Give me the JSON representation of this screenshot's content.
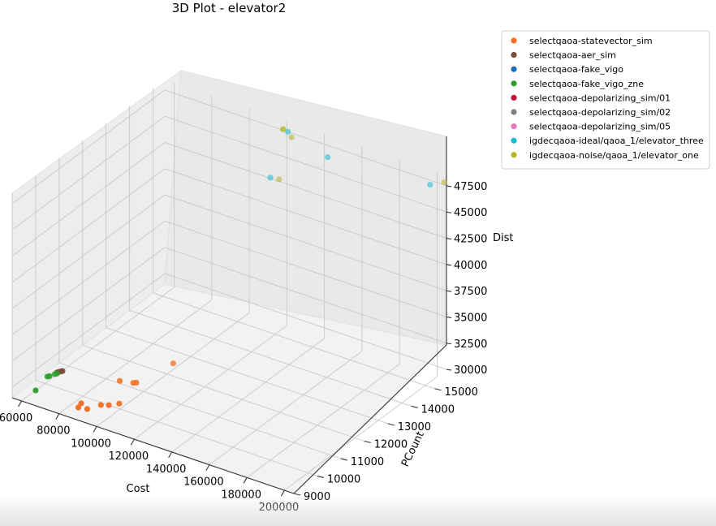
{
  "chart_data": {
    "type": "scatter",
    "title": "3D Plot - elevator2",
    "xlabel": "Cost",
    "ylabel": "PCount",
    "zlabel": "Dist",
    "xlim": [
      55000,
      205000
    ],
    "ylim": [
      9000,
      15500
    ],
    "zlim": [
      29000,
      48500
    ],
    "x_ticks": [
      "60000",
      "80000",
      "100000",
      "120000",
      "140000",
      "160000",
      "180000",
      "200000"
    ],
    "y_ticks": [
      "9000",
      "10000",
      "11000",
      "12000",
      "13000",
      "14000",
      "15000"
    ],
    "z_ticks": [
      "30000",
      "32500",
      "35000",
      "37500",
      "40000",
      "42500",
      "45000",
      "47500"
    ],
    "x_tick_values": [
      60000,
      80000,
      100000,
      120000,
      140000,
      160000,
      180000,
      200000
    ],
    "y_tick_values": [
      9000,
      10000,
      11000,
      12000,
      13000,
      14000,
      15000
    ],
    "z_tick_values": [
      30000,
      32500,
      35000,
      37500,
      40000,
      42500,
      45000,
      47500
    ],
    "grid": true,
    "legend_position": "outside-right",
    "series": [
      {
        "name": "selectqaoa-statevector_sim",
        "color": "#f36d21",
        "points": [
          [
            84000,
            9500,
            29000
          ],
          [
            88000,
            9560,
            29000
          ],
          [
            83000,
            9700,
            29000
          ],
          [
            91000,
            9900,
            29000
          ],
          [
            94000,
            10000,
            29000
          ],
          [
            97000,
            10200,
            29000
          ],
          [
            86000,
            11100,
            29000
          ],
          [
            92000,
            11200,
            29000
          ],
          [
            93000,
            11250,
            29000
          ],
          [
            97000,
            12500,
            29000
          ]
        ]
      },
      {
        "name": "selectqaoa-aer_sim",
        "color": "#7a4a3a",
        "points": [
          [
            59000,
            10600,
            29000
          ],
          [
            59500,
            10650,
            29000
          ],
          [
            60000,
            10700,
            29000
          ],
          [
            60300,
            10720,
            29000
          ]
        ]
      },
      {
        "name": "selectqaoa-fake_vigo",
        "color": "#1f6db5",
        "points": []
      },
      {
        "name": "selectqaoa-fake_vigo_zne",
        "color": "#2ca02c",
        "points": [
          [
            60000,
            9600,
            29000
          ],
          [
            57500,
            10300,
            29000
          ],
          [
            58000,
            10350,
            29000
          ],
          [
            59000,
            10500,
            29000
          ],
          [
            59500,
            10550,
            29000
          ]
        ]
      },
      {
        "name": "selectqaoa-depolarizing_sim/01",
        "color": "#c80f3c",
        "points": []
      },
      {
        "name": "selectqaoa-depolarizing_sim/02",
        "color": "#7f7f7f",
        "points": []
      },
      {
        "name": "selectqaoa-depolarizing_sim/05",
        "color": "#e377c2",
        "points": []
      },
      {
        "name": "igdecqaoa-ideal/qaoa_1/elevator_three",
        "color": "#17becf",
        "points": [
          [
            148000,
            15000,
            47600
          ],
          [
            115000,
            15200,
            43300
          ],
          [
            123000,
            15300,
            48000
          ],
          [
            200000,
            15200,
            47800
          ]
        ]
      },
      {
        "name": "igdecqaoa-noise/qaoa_1/elevator_one",
        "color": "#b5b52a",
        "points": [
          [
            121000,
            15250,
            48200
          ],
          [
            120800,
            15280,
            48150
          ],
          [
            125000,
            15300,
            47600
          ],
          [
            119000,
            15250,
            43300
          ],
          [
            205000,
            15400,
            48000
          ]
        ]
      }
    ]
  }
}
